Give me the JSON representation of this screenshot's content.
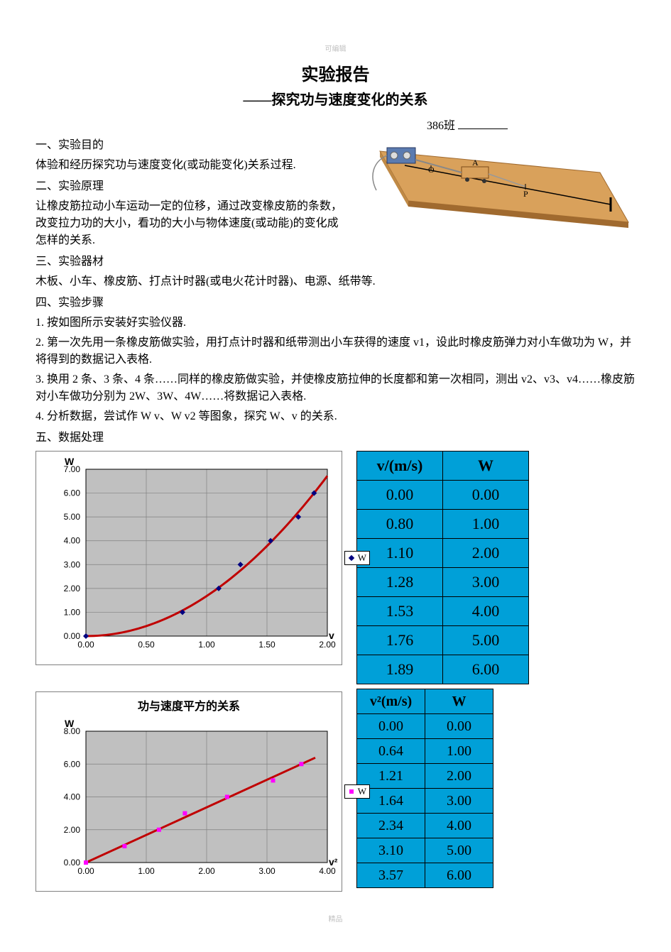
{
  "header_small": "可编辑",
  "title": "实验报告",
  "subtitle": "——探究功与速度变化的关系",
  "class_label": "386班",
  "sections": {
    "s1_title": "一、实验目的",
    "s1_body": "体验和经历探究功与速度变化(或动能变化)关系过程.",
    "s2_title": "二、实验原理",
    "s2_body": "让橡皮筋拉动小车运动一定的位移，通过改变橡皮筋的条数，改变拉力功的大小，看功的大小与物体速度(或动能)的变化成怎样的关系.",
    "s3_title": "三、实验器材",
    "s3_body": "木板、小车、橡皮筋、打点计时器(或电火花计时器)、电源、纸带等.",
    "s4_title": "四、实验步骤",
    "s4_1": "1. 按如图所示安装好实验仪器.",
    "s4_2": "2. 第一次先用一条橡皮筋做实验，用打点计时器和纸带测出小车获得的速度 v1，设此时橡皮筋弹力对小车做功为 W，并将得到的数据记入表格.",
    "s4_3": "3. 换用 2 条、3 条、4 条……同样的橡皮筋做实验，并使橡皮筋拉伸的长度都和第一次相同，测出 v2、v3、v4……橡皮筋对小车做功分别为 2W、3W、4W……将数据记入表格.",
    "s4_4": "4. 分析数据，尝试作 W v、W v2 等图象，探究 W、v 的关系.",
    "s5_title": "五、数据处理"
  },
  "chart1": {
    "type": "scatter+line",
    "y_label": "W",
    "x_label": "v",
    "xlim": [
      0,
      2.0
    ],
    "ylim": [
      0,
      7.0
    ],
    "xticks": [
      "0.00",
      "0.50",
      "1.00",
      "1.50",
      "2.00"
    ],
    "yticks": [
      "0.00",
      "1.00",
      "2.00",
      "3.00",
      "4.00",
      "5.00",
      "6.00",
      "7.00"
    ],
    "plot_bg": "#c0c0c0",
    "grid_color": "#808080",
    "marker_color": "#000080",
    "line_color": "#c00000",
    "line_width": 3,
    "tick_fontsize": 12,
    "label_fontsize": 14,
    "legend_label": "W",
    "points_x": [
      0.0,
      0.8,
      1.1,
      1.28,
      1.53,
      1.76,
      1.89
    ],
    "points_y": [
      0.0,
      1.0,
      2.0,
      3.0,
      4.0,
      5.0,
      6.0
    ]
  },
  "chart2": {
    "type": "scatter+line",
    "title": "功与速度平方的关系",
    "y_label": "W",
    "x_label": "v²",
    "xlim": [
      0,
      4.0
    ],
    "ylim": [
      0,
      8.0
    ],
    "xticks": [
      "0.00",
      "1.00",
      "2.00",
      "3.00",
      "4.00"
    ],
    "yticks": [
      "0.00",
      "2.00",
      "4.00",
      "6.00",
      "8.00"
    ],
    "plot_bg": "#c0c0c0",
    "grid_color": "#808080",
    "marker_color": "#ff00ff",
    "line_color": "#c00000",
    "line_width": 3,
    "tick_fontsize": 12,
    "label_fontsize": 14,
    "legend_label": "W",
    "points_x": [
      0.0,
      0.64,
      1.21,
      1.64,
      2.34,
      3.1,
      3.57
    ],
    "points_y": [
      0.0,
      1.0,
      2.0,
      3.0,
      4.0,
      5.0,
      6.0
    ]
  },
  "table1": {
    "headers": [
      "v/(m/s)",
      "W"
    ],
    "rows": [
      [
        "0.00",
        "0.00"
      ],
      [
        "0.80",
        "1.00"
      ],
      [
        "1.10",
        "2.00"
      ],
      [
        "1.28",
        "3.00"
      ],
      [
        "1.53",
        "4.00"
      ],
      [
        "1.76",
        "5.00"
      ],
      [
        "1.89",
        "6.00"
      ]
    ],
    "cell_bg": "#00a0d8",
    "border_color": "#000000",
    "font_size": 22
  },
  "table2": {
    "headers": [
      "v²(m/s)",
      "W"
    ],
    "rows": [
      [
        "0.00",
        "0.00"
      ],
      [
        "0.64",
        "1.00"
      ],
      [
        "1.21",
        "2.00"
      ],
      [
        "1.64",
        "3.00"
      ],
      [
        "2.34",
        "4.00"
      ],
      [
        "3.10",
        "5.00"
      ],
      [
        "3.57",
        "6.00"
      ]
    ],
    "cell_bg": "#00a0d8",
    "border_color": "#000000",
    "font_size": 20
  },
  "apparatus": {
    "board_color": "#d9a15b",
    "board_dark": "#a06a2f",
    "timer_color": "#5b7bb0",
    "cart_color": "#d9a15b",
    "label_O": "O",
    "label_A": "A",
    "label_P": "P"
  },
  "footer": "精品"
}
